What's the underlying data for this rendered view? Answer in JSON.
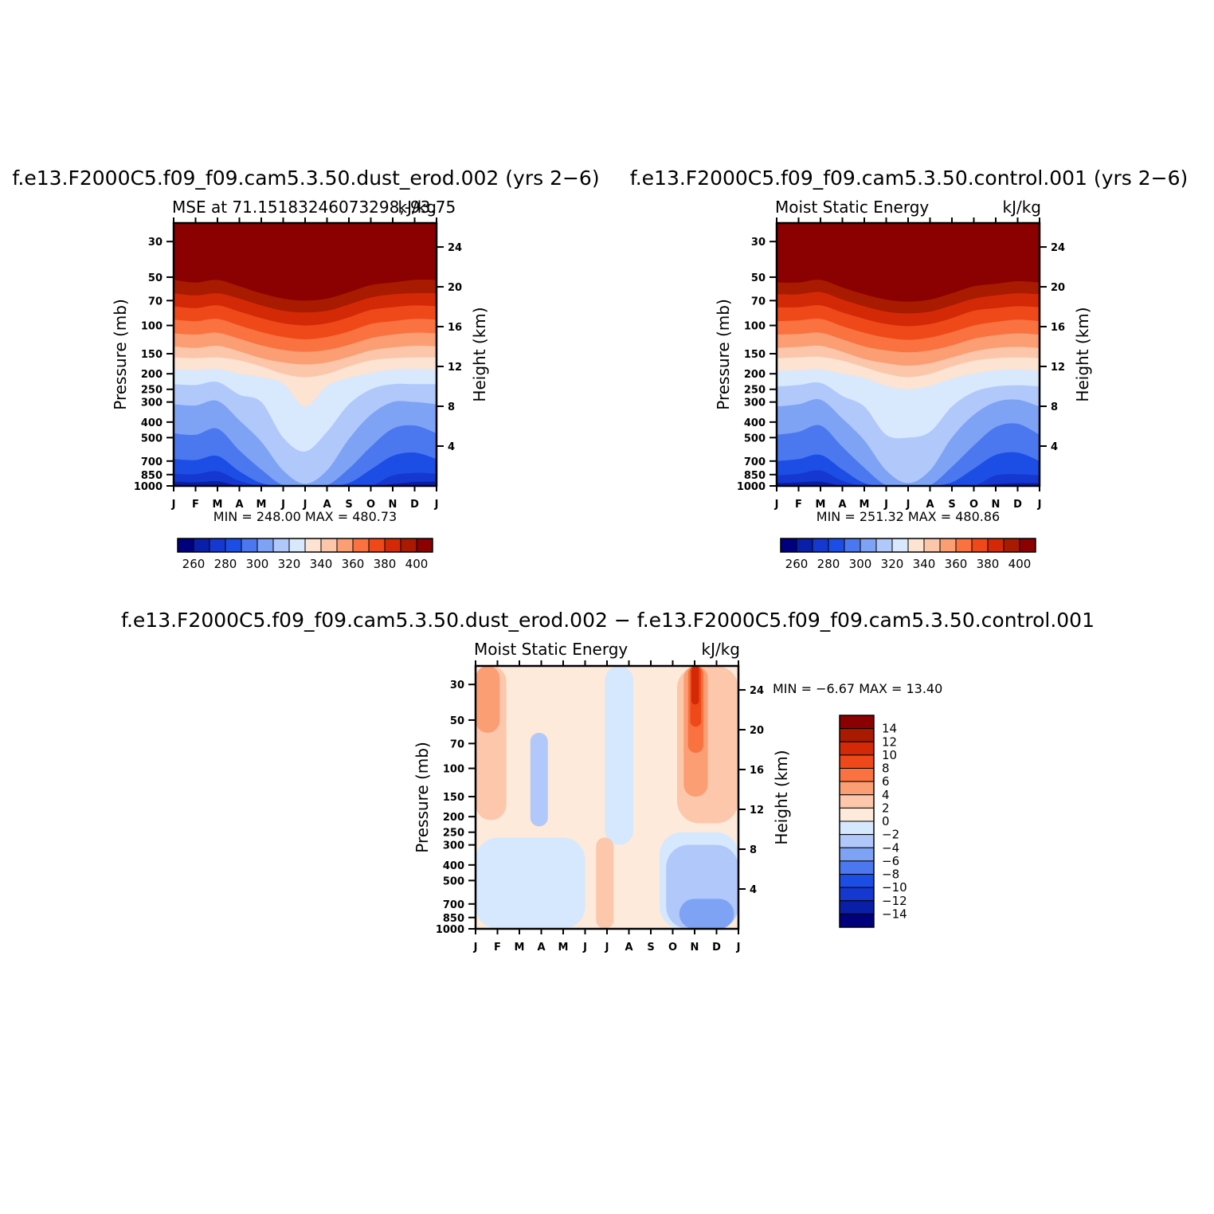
{
  "palettes": {
    "abs": [
      "#00007f",
      "#0a1fa8",
      "#1538d0",
      "#1c4ee6",
      "#4c78ef",
      "#7ea3f5",
      "#b1c8fa",
      "#d8e8fd",
      "#fde3d2",
      "#fcc6aa",
      "#fb9e74",
      "#f9723f",
      "#ef4919",
      "#d42907",
      "#a81b00",
      "#8b0000"
    ],
    "diff": [
      "#00007f",
      "#0a1fa8",
      "#1538d0",
      "#1c4ee6",
      "#4c78ef",
      "#7ea3f5",
      "#b1c8fa",
      "#d6e8fd",
      "#fdeada",
      "#fcc7aa",
      "#fb9e74",
      "#f9723f",
      "#ef4919",
      "#d42907",
      "#a81b00",
      "#8b0000"
    ]
  },
  "panels": [
    {
      "id": "panel-dust-erod",
      "title": "f.e13.F2000C5.f09_f09.cam5.3.50.dust_erod.002 (yrs 2−6)",
      "left_string": "MSE at 71.15183246073298,-93.75",
      "right_string": "kJ/kg",
      "ylabel": "Pressure (mb)",
      "ylabel_right": "Height (km)",
      "minmax": "MIN = 248.00  MAX = 480.73",
      "colorbar_labels": [
        "260",
        "280",
        "300",
        "320",
        "340",
        "360",
        "380",
        "400"
      ]
    },
    {
      "id": "panel-control",
      "title": "f.e13.F2000C5.f09_f09.cam5.3.50.control.001 (yrs 2−6)",
      "left_string": "Moist Static Energy",
      "right_string": "kJ/kg",
      "ylabel": "Pressure (mb)",
      "ylabel_right": "Height (km)",
      "minmax": "MIN = 251.32  MAX = 480.86",
      "colorbar_labels": [
        "260",
        "280",
        "300",
        "320",
        "340",
        "360",
        "380",
        "400"
      ]
    },
    {
      "id": "panel-difference",
      "title": "f.e13.F2000C5.f09_f09.cam5.3.50.dust_erod.002 − f.e13.F2000C5.f09_f09.cam5.3.50.control.001",
      "left_string": "Moist Static Energy",
      "right_string": "kJ/kg",
      "ylabel": "Pressure (mb)",
      "ylabel_right": "Height (km)",
      "minmax": "MIN =   −6.67  MAX =   13.40",
      "colorbar_labels": [
        "14",
        "12",
        "10",
        "8",
        "6",
        "4",
        "2",
        "0",
        "−2",
        "−4",
        "−6",
        "−8",
        "−10",
        "−12",
        "−14"
      ]
    }
  ],
  "chart_data": [
    {
      "type": "heatmap",
      "title": "f.e13.F2000C5.f09_f09.cam5.3.50.dust_erod.002 (yrs 2−6)",
      "subtitle": "MSE at 71.15183246073298,-93.75",
      "units": "kJ/kg",
      "xlabel": "",
      "ylabel": "Pressure (mb)",
      "ylabel_right": "Height (km)",
      "x_ticks": [
        "J",
        "F",
        "M",
        "A",
        "M",
        "J",
        "J",
        "A",
        "S",
        "O",
        "N",
        "D",
        "J"
      ],
      "y_ticks": [
        30,
        50,
        70,
        100,
        150,
        200,
        250,
        300,
        400,
        500,
        700,
        850,
        1000
      ],
      "y_ticks_right": [
        24,
        20,
        16,
        12,
        8,
        4
      ],
      "ylim": [
        1000,
        23
      ],
      "y_scale": "log",
      "levels": [
        260,
        270,
        280,
        290,
        300,
        310,
        320,
        330,
        340,
        350,
        360,
        370,
        380,
        390,
        400
      ],
      "min": 248.0,
      "max": 480.73,
      "boundaries_mb": {
        "levels": [
          260,
          270,
          280,
          290,
          300,
          310,
          320,
          330,
          340,
          350,
          360,
          370,
          380,
          390,
          400
        ],
        "x_months": [
          "J",
          "F",
          "M",
          "A",
          "M",
          "J",
          "J",
          "A",
          "S",
          "O",
          "N",
          "D",
          "J"
        ],
        "rows": [
          [
            995,
            1000,
            1000,
            1000,
            1000,
            1000,
            1000,
            1000,
            1000,
            1000,
            1000,
            1000,
            995
          ],
          [
            940,
            950,
            935,
            1000,
            1000,
            1000,
            1000,
            1000,
            1000,
            1000,
            975,
            945,
            940
          ],
          [
            840,
            845,
            810,
            930,
            1000,
            1000,
            1000,
            1000,
            1000,
            1000,
            860,
            830,
            840
          ],
          [
            680,
            690,
            650,
            810,
            960,
            1000,
            1000,
            1000,
            960,
            790,
            650,
            620,
            680
          ],
          [
            470,
            480,
            440,
            600,
            790,
            990,
            1000,
            990,
            780,
            570,
            440,
            420,
            470
          ],
          [
            310,
            315,
            295,
            390,
            530,
            800,
            970,
            800,
            510,
            360,
            300,
            300,
            310
          ],
          [
            232,
            235,
            225,
            270,
            300,
            500,
            610,
            460,
            310,
            250,
            232,
            232,
            232
          ],
          [
            188,
            190,
            186,
            200,
            210,
            230,
            320,
            238,
            212,
            198,
            188,
            186,
            188
          ],
          [
            158,
            160,
            158,
            165,
            180,
            200,
            210,
            200,
            180,
            165,
            160,
            158,
            158
          ],
          [
            135,
            138,
            134,
            145,
            160,
            170,
            175,
            170,
            157,
            143,
            137,
            134,
            135
          ],
          [
            112,
            114,
            111,
            121,
            133,
            142,
            146,
            142,
            132,
            120,
            114,
            111,
            112
          ],
          [
            92,
            94,
            91,
            100,
            110,
            118,
            122,
            118,
            109,
            98,
            94,
            91,
            92
          ],
          [
            76,
            78,
            75,
            82,
            90,
            97,
            100,
            97,
            89,
            80,
            77,
            75,
            76
          ],
          [
            63,
            65,
            63,
            68,
            75,
            81,
            83,
            81,
            74,
            67,
            64,
            63,
            63
          ],
          [
            52,
            54,
            52,
            57,
            63,
            68,
            70,
            68,
            62,
            56,
            54,
            52,
            52
          ]
        ]
      }
    },
    {
      "type": "heatmap",
      "title": "f.e13.F2000C5.f09_f09.cam5.3.50.control.001 (yrs 2−6)",
      "subtitle": "Moist Static Energy",
      "units": "kJ/kg",
      "xlabel": "",
      "ylabel": "Pressure (mb)",
      "ylabel_right": "Height (km)",
      "x_ticks": [
        "J",
        "F",
        "M",
        "A",
        "M",
        "J",
        "J",
        "A",
        "S",
        "O",
        "N",
        "D",
        "J"
      ],
      "y_ticks": [
        30,
        50,
        70,
        100,
        150,
        200,
        250,
        300,
        400,
        500,
        700,
        850,
        1000
      ],
      "y_ticks_right": [
        24,
        20,
        16,
        12,
        8,
        4
      ],
      "ylim": [
        1000,
        23
      ],
      "y_scale": "log",
      "levels": [
        260,
        270,
        280,
        290,
        300,
        310,
        320,
        330,
        340,
        350,
        360,
        370,
        380,
        390,
        400
      ],
      "min": 251.32,
      "max": 480.86,
      "boundaries_mb": {
        "levels": [
          260,
          270,
          280,
          290,
          300,
          310,
          320,
          330,
          340,
          350,
          360,
          370,
          380,
          390,
          400
        ],
        "x_months": [
          "J",
          "F",
          "M",
          "A",
          "M",
          "J",
          "J",
          "A",
          "S",
          "O",
          "N",
          "D",
          "J"
        ],
        "rows": [
          [
            1000,
            1000,
            990,
            1000,
            1000,
            1000,
            1000,
            1000,
            1000,
            1000,
            1000,
            1000,
            1000
          ],
          [
            960,
            950,
            940,
            1000,
            1000,
            1000,
            1000,
            1000,
            1000,
            1000,
            975,
            960,
            960
          ],
          [
            860,
            840,
            800,
            930,
            1000,
            1000,
            1000,
            1000,
            1000,
            1000,
            860,
            845,
            860
          ],
          [
            700,
            680,
            640,
            790,
            960,
            1000,
            1000,
            1000,
            950,
            780,
            640,
            620,
            700
          ],
          [
            480,
            460,
            420,
            570,
            770,
            990,
            1000,
            990,
            760,
            560,
            430,
            410,
            480
          ],
          [
            320,
            310,
            290,
            380,
            520,
            800,
            960,
            800,
            500,
            360,
            300,
            290,
            320
          ],
          [
            240,
            235,
            228,
            275,
            320,
            480,
            500,
            460,
            320,
            260,
            240,
            236,
            240
          ],
          [
            192,
            190,
            188,
            200,
            212,
            238,
            250,
            238,
            214,
            200,
            190,
            188,
            192
          ],
          [
            160,
            158,
            157,
            166,
            182,
            200,
            210,
            200,
            180,
            166,
            160,
            158,
            160
          ],
          [
            138,
            136,
            134,
            146,
            162,
            172,
            178,
            172,
            158,
            145,
            138,
            136,
            138
          ],
          [
            114,
            113,
            111,
            122,
            135,
            143,
            147,
            143,
            133,
            121,
            115,
            112,
            114
          ],
          [
            94,
            93,
            91,
            101,
            111,
            119,
            123,
            119,
            110,
            100,
            95,
            92,
            94
          ],
          [
            77,
            77,
            75,
            83,
            91,
            98,
            101,
            98,
            90,
            81,
            78,
            76,
            77
          ],
          [
            64,
            64,
            62,
            69,
            76,
            82,
            84,
            82,
            75,
            68,
            65,
            63,
            64
          ],
          [
            54,
            54,
            52,
            58,
            64,
            69,
            71,
            69,
            63,
            57,
            55,
            53,
            54
          ]
        ]
      }
    },
    {
      "type": "heatmap",
      "title": "f.e13.F2000C5.f09_f09.cam5.3.50.dust_erod.002 − f.e13.F2000C5.f09_f09.cam5.3.50.control.001",
      "subtitle": "Moist Static Energy",
      "units": "kJ/kg",
      "xlabel": "",
      "ylabel": "Pressure (mb)",
      "ylabel_right": "Height (km)",
      "x_ticks": [
        "J",
        "F",
        "M",
        "A",
        "M",
        "J",
        "J",
        "A",
        "S",
        "O",
        "N",
        "D",
        "J"
      ],
      "y_ticks": [
        30,
        50,
        70,
        100,
        150,
        200,
        250,
        300,
        400,
        500,
        700,
        850,
        1000
      ],
      "y_ticks_right": [
        24,
        20,
        16,
        12,
        8,
        4
      ],
      "ylim": [
        1000,
        23
      ],
      "y_scale": "log",
      "levels": [
        -14,
        -12,
        -10,
        -8,
        -6,
        -4,
        -2,
        0,
        2,
        4,
        6,
        8,
        10,
        12,
        14
      ],
      "min": -6.67,
      "max": 13.4,
      "regions": [
        {
          "value_range": [
            -2,
            0
          ],
          "months": [
            0,
            5
          ],
          "p_range": [
            270,
            1000
          ]
        },
        {
          "value_range": [
            -2,
            0
          ],
          "months": [
            5.9,
            7.2
          ],
          "p_range": [
            23,
            300
          ]
        },
        {
          "value_range": [
            -2,
            0
          ],
          "months": [
            8.4,
            12
          ],
          "p_range": [
            250,
            1000
          ]
        },
        {
          "value_range": [
            -4,
            -2
          ],
          "months": [
            2.5,
            3.3
          ],
          "p_range": [
            60,
            230
          ]
        },
        {
          "value_range": [
            -4,
            -2
          ],
          "months": [
            8.7,
            12
          ],
          "p_range": [
            300,
            1000
          ]
        },
        {
          "value_range": [
            -6,
            -4
          ],
          "months": [
            9.3,
            11.8
          ],
          "p_range": [
            650,
            1000
          ]
        },
        {
          "value_range": [
            0,
            2
          ],
          "months": [
            0,
            12
          ],
          "p_range": [
            23,
            1000
          ]
        },
        {
          "value_range": [
            2,
            4
          ],
          "months": [
            5.5,
            6.3
          ],
          "p_range": [
            270,
            1000
          ]
        },
        {
          "value_range": [
            2,
            4
          ],
          "months": [
            9.2,
            12
          ],
          "p_range": [
            23,
            220
          ]
        },
        {
          "value_range": [
            2,
            4
          ],
          "months": [
            0,
            1.4
          ],
          "p_range": [
            23,
            210
          ]
        },
        {
          "value_range": [
            4,
            6
          ],
          "months": [
            9.5,
            10.6
          ],
          "p_range": [
            23,
            150
          ]
        },
        {
          "value_range": [
            4,
            6
          ],
          "months": [
            0,
            1.1
          ],
          "p_range": [
            23,
            60
          ]
        },
        {
          "value_range": [
            6,
            8
          ],
          "months": [
            9.7,
            10.4
          ],
          "p_range": [
            23,
            80
          ]
        },
        {
          "value_range": [
            8,
            10
          ],
          "months": [
            9.8,
            10.3
          ],
          "p_range": [
            23,
            55
          ]
        },
        {
          "value_range": [
            10,
            12
          ],
          "months": [
            9.85,
            10.2
          ],
          "p_range": [
            23,
            40
          ]
        }
      ]
    }
  ]
}
